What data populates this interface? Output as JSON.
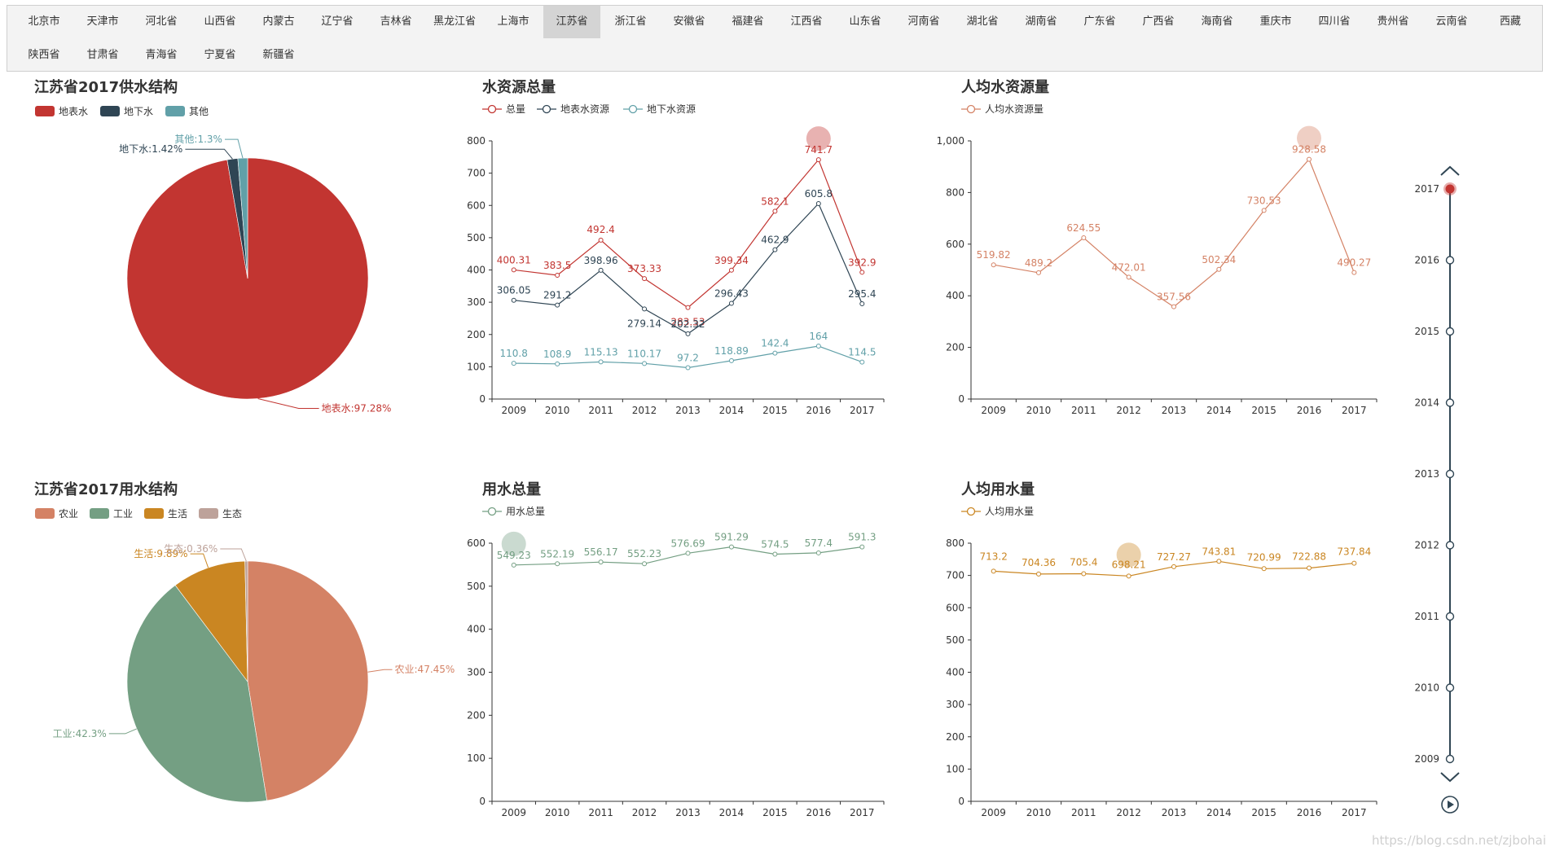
{
  "provinces": [
    "北京市",
    "天津市",
    "河北省",
    "山西省",
    "内蒙古",
    "辽宁省",
    "吉林省",
    "黑龙江省",
    "上海市",
    "江苏省",
    "浙江省",
    "安徽省",
    "福建省",
    "江西省",
    "山东省",
    "河南省",
    "湖北省",
    "湖南省",
    "广东省",
    "广西省",
    "海南省",
    "重庆市",
    "四川省",
    "贵州省",
    "云南省",
    "西藏",
    "陕西省",
    "甘肃省",
    "青海省",
    "宁夏省",
    "新疆省"
  ],
  "active_province": "江苏省",
  "colors": {
    "red": "#c23531",
    "navy": "#2f4554",
    "teal": "#61a0a8",
    "salmon": "#d48265",
    "green": "#749f83",
    "gold": "#ca8622",
    "beige": "#bda29a",
    "timeline": "#304654"
  },
  "icons": {
    "timeline_up": "chevron-up-icon",
    "timeline_down": "chevron-down-icon",
    "play": "play-icon"
  },
  "timeline": {
    "years": [
      "2009",
      "2010",
      "2011",
      "2012",
      "2013",
      "2014",
      "2015",
      "2016",
      "2017"
    ],
    "current": "2017"
  },
  "watermark": "https://blog.csdn.net/zjbohai",
  "chart_data": [
    {
      "id": "supply",
      "type": "pie",
      "title": "江苏省2017供水结构",
      "legend": [
        "地表水",
        "地下水",
        "其他"
      ],
      "slices": [
        {
          "name": "地表水",
          "value": 97.28,
          "label": "地表水:97.28%"
        },
        {
          "name": "地下水",
          "value": 1.42,
          "label": "地下水:1.42%"
        },
        {
          "name": "其他",
          "value": 1.3,
          "label": "其他:1.3%"
        }
      ]
    },
    {
      "id": "total",
      "type": "line",
      "title": "水资源总量",
      "x": [
        "2009",
        "2010",
        "2011",
        "2012",
        "2013",
        "2014",
        "2015",
        "2016",
        "2017"
      ],
      "ylim": [
        0,
        800
      ],
      "yticks": [
        "0",
        "100",
        "200",
        "300",
        "400",
        "500",
        "600",
        "700",
        "800"
      ],
      "series": [
        {
          "name": "总量",
          "values": [
            400.31,
            383.5,
            492.4,
            373.33,
            283.53,
            399.34,
            582.1,
            741.7,
            392.9
          ],
          "labels": [
            "400.31",
            "383.5",
            "492.4",
            "373.33",
            "283.53",
            "399.34",
            "582.1",
            "741.7",
            "392.9"
          ]
        },
        {
          "name": "地表水资源",
          "values": [
            306.05,
            291.2,
            398.96,
            279.14,
            202.32,
            296.43,
            462.9,
            605.8,
            295.4
          ],
          "labels": [
            "306.05",
            "291.2",
            "398.96",
            "279.14",
            "202.32",
            "296.43",
            "462.9",
            "605.8",
            "295.4"
          ]
        },
        {
          "name": "地下水资源",
          "values": [
            110.8,
            108.9,
            115.13,
            110.17,
            97.2,
            118.89,
            142.4,
            164,
            114.5
          ],
          "labels": [
            "110.8",
            "108.9",
            "115.13",
            "110.17",
            "97.2",
            "118.89",
            "142.4",
            "164",
            "114.5"
          ]
        }
      ]
    },
    {
      "id": "percap",
      "type": "line",
      "title": "人均水资源量",
      "x": [
        "2009",
        "2010",
        "2011",
        "2012",
        "2013",
        "2014",
        "2015",
        "2016",
        "2017"
      ],
      "ylim": [
        0,
        1000
      ],
      "yticks": [
        "0",
        "200",
        "400",
        "600",
        "800",
        "1,000"
      ],
      "series": [
        {
          "name": "人均水资源量",
          "values": [
            519.82,
            489.2,
            624.55,
            472.01,
            357.56,
            502.34,
            730.53,
            928.58,
            490.27
          ],
          "labels": [
            "519.82",
            "489.2",
            "624.55",
            "472.01",
            "357.56",
            "502.34",
            "730.53",
            "928.58",
            "490.27"
          ]
        }
      ]
    },
    {
      "id": "use",
      "type": "pie",
      "title": "江苏省2017用水结构",
      "legend": [
        "农业",
        "工业",
        "生活",
        "生态"
      ],
      "slices": [
        {
          "name": "农业",
          "value": 47.45,
          "label": "农业:47.45%"
        },
        {
          "name": "工业",
          "value": 42.3,
          "label": "工业:42.3%"
        },
        {
          "name": "生活",
          "value": 9.89,
          "label": "生活:9.89%"
        },
        {
          "name": "生态",
          "value": 0.36,
          "label": "生态:0.36%"
        }
      ]
    },
    {
      "id": "usetotal",
      "type": "line",
      "title": "用水总量",
      "x": [
        "2009",
        "2010",
        "2011",
        "2012",
        "2013",
        "2014",
        "2015",
        "2016",
        "2017"
      ],
      "ylim": [
        0,
        600
      ],
      "yticks": [
        "0",
        "100",
        "200",
        "300",
        "400",
        "500",
        "600"
      ],
      "series": [
        {
          "name": "用水总量",
          "values": [
            549.23,
            552.19,
            556.17,
            552.23,
            576.69,
            591.29,
            574.5,
            577.4,
            591.3
          ],
          "labels": [
            "549.23",
            "552.19",
            "556.17",
            "552.23",
            "576.69",
            "591.29",
            "574.5",
            "577.4",
            "591.3"
          ]
        }
      ]
    },
    {
      "id": "useper",
      "type": "line",
      "title": "人均用水量",
      "x": [
        "2009",
        "2010",
        "2011",
        "2012",
        "2013",
        "2014",
        "2015",
        "2016",
        "2017"
      ],
      "ylim": [
        0,
        800
      ],
      "yticks": [
        "0",
        "100",
        "200",
        "300",
        "400",
        "500",
        "600",
        "700",
        "800"
      ],
      "series": [
        {
          "name": "人均用水量",
          "values": [
            713.2,
            704.36,
            705.4,
            698.21,
            727.27,
            743.81,
            720.99,
            722.88,
            737.84
          ],
          "labels": [
            "713.2",
            "704.36",
            "705.4",
            "698.21",
            "727.27",
            "743.81",
            "720.99",
            "722.88",
            "737.84"
          ]
        }
      ]
    }
  ]
}
